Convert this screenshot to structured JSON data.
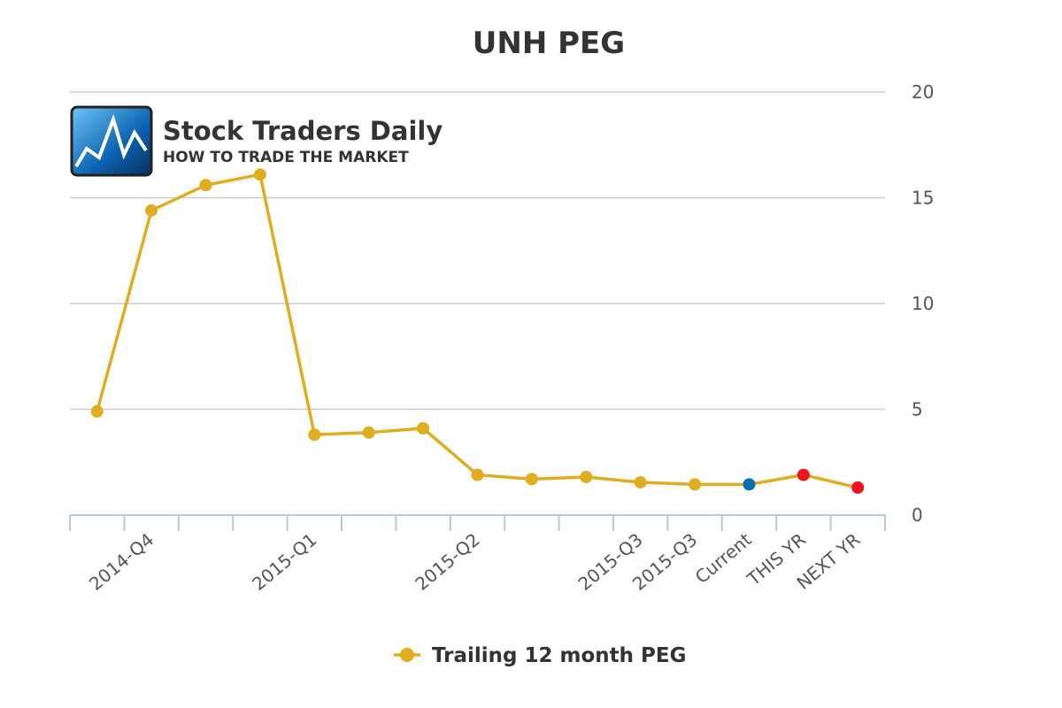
{
  "chart_data": {
    "type": "line",
    "title": "UNH PEG",
    "categories": [
      null,
      "2014-Q4",
      null,
      null,
      "2015-Q1",
      null,
      null,
      "2015-Q2",
      null,
      null,
      "2015-Q3",
      "2015-Q3",
      "Current",
      "THIS YR",
      "NEXT YR"
    ],
    "series": [
      {
        "name": "Trailing 12 month PEG",
        "color": "#dfad1f",
        "values": [
          4.9,
          14.4,
          15.6,
          16.1,
          3.8,
          3.9,
          4.1,
          1.9,
          1.7,
          1.8,
          1.55,
          1.45,
          1.45,
          1.9,
          1.3
        ],
        "point_colors": [
          "#dfad1f",
          "#dfad1f",
          "#dfad1f",
          "#dfad1f",
          "#dfad1f",
          "#dfad1f",
          "#dfad1f",
          "#dfad1f",
          "#dfad1f",
          "#dfad1f",
          "#dfad1f",
          "#dfad1f",
          "#0a6fae",
          "#f0141e",
          "#f0141e"
        ]
      }
    ],
    "ylim": [
      0,
      20
    ],
    "yticks": [
      0,
      5,
      10,
      15,
      20
    ],
    "grid": true,
    "y_axis_side": "right",
    "legend": "bottom",
    "watermark": {
      "title": "Stock Traders Daily",
      "subtitle": "HOW TO TRADE THE MARKET"
    }
  }
}
